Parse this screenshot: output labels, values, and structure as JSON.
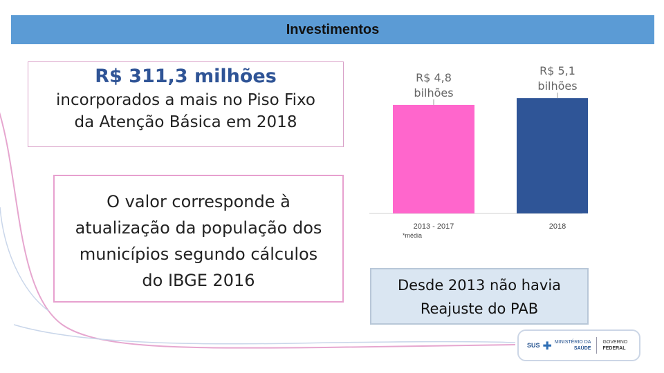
{
  "header": {
    "title": "Investimentos"
  },
  "highlight": {
    "amount": "R$ 311,3 milhões",
    "line1": "incorporados a mais no Piso Fixo",
    "line2": "da Atenção Básica em 2018"
  },
  "explanation": {
    "lines": [
      "O valor corresponde à",
      "atualização da população dos",
      "municípios segundo cálculos",
      "do IBGE 2016"
    ]
  },
  "note": {
    "lines": [
      "Desde 2013 não havia",
      "Reajuste do PAB"
    ]
  },
  "chart_data": {
    "type": "bar",
    "categories": [
      "2013 - 2017",
      "2018"
    ],
    "category_note": "*média",
    "values": [
      4.8,
      5.1
    ],
    "labels": [
      [
        "R$ 4,8",
        "bilhões"
      ],
      [
        "R$ 5,1",
        "bilhões"
      ]
    ],
    "colors": [
      "#ff66cc",
      "#2f5597"
    ],
    "ylim": [
      0,
      5.5
    ],
    "grid": false,
    "title": "",
    "xlabel": "",
    "ylabel": ""
  },
  "logo": {
    "sus": "SUS",
    "ministry_line1": "MINISTÉRIO DA",
    "ministry_line2": "SAÚDE",
    "gov_line1": "GOVERNO",
    "gov_line2": "FEDERAL"
  }
}
